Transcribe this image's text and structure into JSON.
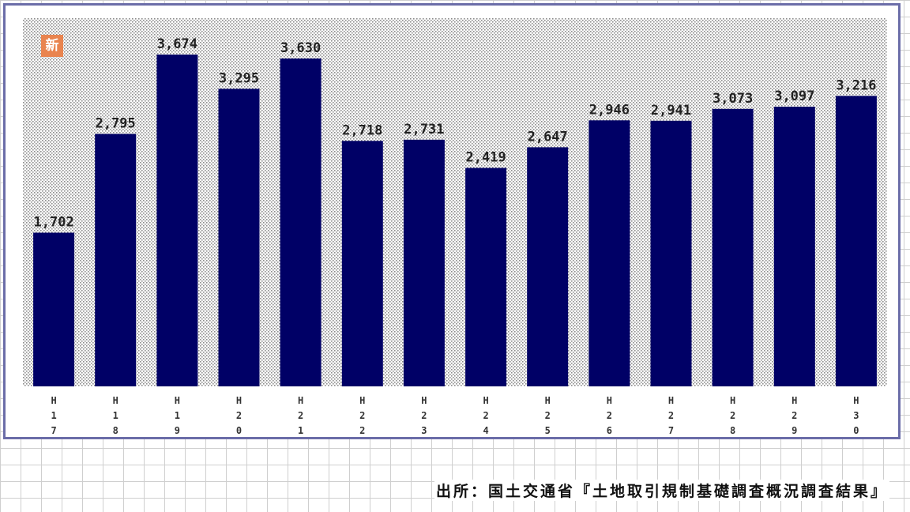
{
  "badge": {
    "label": "新"
  },
  "source": {
    "text": "出所：国土交通省『土地取引規制基礎調査概況調査結果』"
  },
  "colors": {
    "bar": "#000066",
    "plot_dots": "#8c8c8c",
    "frame": "#6b6da8",
    "badge": "#e9844f"
  },
  "chart_data": {
    "type": "bar",
    "categories": [
      "H17",
      "H18",
      "H19",
      "H20",
      "H21",
      "H22",
      "H23",
      "H24",
      "H25",
      "H26",
      "H27",
      "H28",
      "H29",
      "H30"
    ],
    "values": [
      1702,
      2795,
      3674,
      3295,
      3630,
      2718,
      2731,
      2419,
      2647,
      2946,
      2941,
      3073,
      3097,
      3216
    ],
    "value_labels": [
      "1,702",
      "2,795",
      "3,674",
      "3,295",
      "3,630",
      "2,718",
      "2,731",
      "2,419",
      "2,647",
      "2,946",
      "2,941",
      "3,073",
      "3,097",
      "3,216"
    ],
    "tick_labels": [
      [
        "H",
        "1",
        "7"
      ],
      [
        "H",
        "1",
        "8"
      ],
      [
        "H",
        "1",
        "9"
      ],
      [
        "H",
        "2",
        "0"
      ],
      [
        "H",
        "2",
        "1"
      ],
      [
        "H",
        "2",
        "2"
      ],
      [
        "H",
        "2",
        "3"
      ],
      [
        "H",
        "2",
        "4"
      ],
      [
        "H",
        "2",
        "5"
      ],
      [
        "H",
        "2",
        "6"
      ],
      [
        "H",
        "2",
        "7"
      ],
      [
        "H",
        "2",
        "8"
      ],
      [
        "H",
        "2",
        "9"
      ],
      [
        "H",
        "3",
        "0"
      ]
    ],
    "title": "",
    "xlabel": "",
    "ylabel": "",
    "ylim": [
      0,
      4000
    ],
    "grid": false,
    "legend": "none"
  }
}
